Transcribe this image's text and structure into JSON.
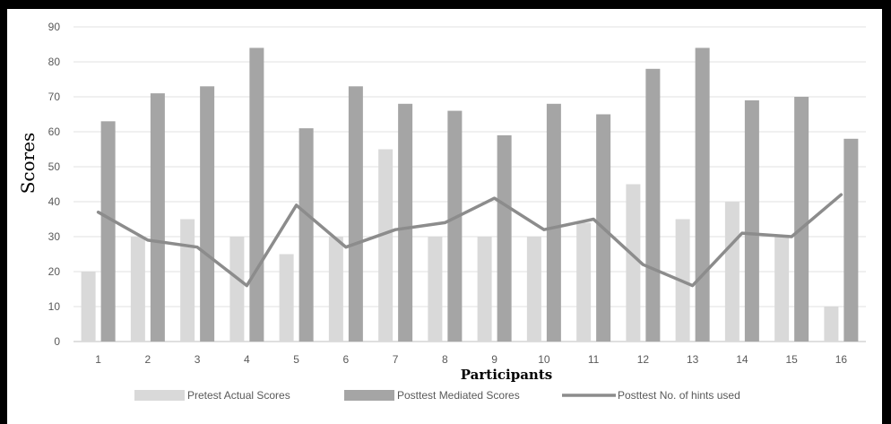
{
  "chart_data": {
    "type": "bar",
    "categories": [
      "1",
      "2",
      "3",
      "4",
      "5",
      "6",
      "7",
      "8",
      "9",
      "10",
      "11",
      "12",
      "13",
      "14",
      "15",
      "16"
    ],
    "series": [
      {
        "name": "Pretest Actual Scores",
        "type": "bar",
        "color": "#d9d9d9",
        "values": [
          20,
          30,
          35,
          30,
          25,
          30,
          55,
          30,
          30,
          30,
          34,
          45,
          35,
          40,
          30,
          10
        ]
      },
      {
        "name": "Posttest Mediated Scores",
        "type": "bar",
        "color": "#a5a5a5",
        "values": [
          63,
          71,
          73,
          84,
          61,
          73,
          68,
          66,
          59,
          68,
          65,
          78,
          84,
          69,
          70,
          58
        ]
      },
      {
        "name": "Posttest No. of hints used",
        "type": "line",
        "color": "#8c8c8c",
        "values": [
          37,
          29,
          27,
          16,
          39,
          27,
          32,
          34,
          41,
          32,
          35,
          22,
          16,
          31,
          30,
          42
        ]
      }
    ],
    "xlabel": "Participants",
    "ylabel": "Scores",
    "ylim": [
      0,
      90
    ],
    "yticks": [
      0,
      10,
      20,
      30,
      40,
      50,
      60,
      70,
      80,
      90
    ],
    "grid": true,
    "legend_position": "bottom"
  }
}
